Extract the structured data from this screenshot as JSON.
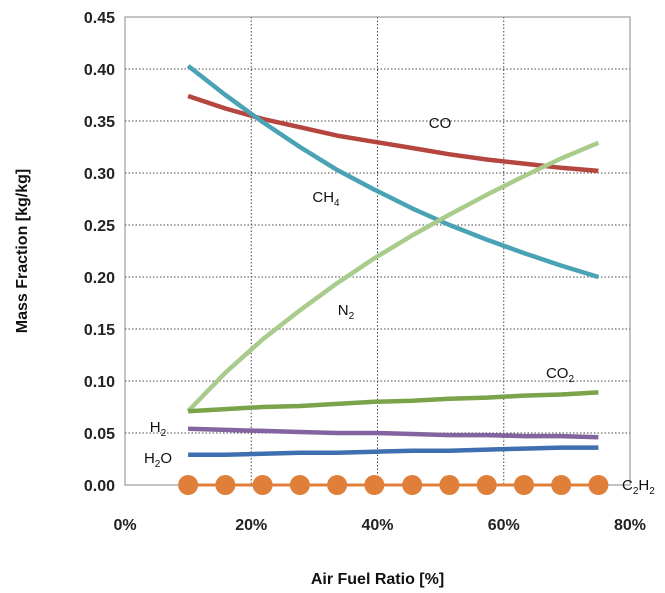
{
  "chart_data": {
    "type": "line",
    "title": "",
    "xlabel": "Air Fuel Ratio  [%]",
    "ylabel": "Mass Fraction  [kg/kg]",
    "xlim": [
      0,
      80
    ],
    "ylim": [
      0,
      0.45
    ],
    "x_ticks": [
      "0%",
      "20%",
      "40%",
      "60%",
      "80%"
    ],
    "y_ticks": [
      "0.00",
      "0.05",
      "0.10",
      "0.15",
      "0.20",
      "0.25",
      "0.30",
      "0.35",
      "0.40",
      "0.45"
    ],
    "grid": true,
    "legend": "none",
    "x": [
      10,
      15.9,
      21.8,
      27.7,
      33.6,
      39.5,
      45.5,
      51.4,
      57.3,
      63.2,
      69.1,
      75
    ],
    "series": [
      {
        "label_main": "CO",
        "label_sub": "",
        "color": "#b5463f",
        "marker": false,
        "values": [
          0.374,
          0.362,
          0.352,
          0.344,
          0.336,
          0.33,
          0.324,
          0.318,
          0.313,
          0.309,
          0.305,
          0.302
        ]
      },
      {
        "label_main": "CH",
        "label_sub": "4",
        "color": "#4aa3b4",
        "marker": false,
        "values": [
          0.403,
          0.375,
          0.349,
          0.325,
          0.303,
          0.284,
          0.266,
          0.25,
          0.236,
          0.223,
          0.211,
          0.2
        ]
      },
      {
        "label_main": "N",
        "label_sub": "2",
        "color": "#a9cc8c",
        "marker": false,
        "values": [
          0.071,
          0.108,
          0.14,
          0.168,
          0.194,
          0.218,
          0.24,
          0.26,
          0.279,
          0.297,
          0.314,
          0.329
        ]
      },
      {
        "label_main": "CO",
        "label_sub": "2",
        "color": "#7aa34a",
        "marker": false,
        "values": [
          0.071,
          0.073,
          0.075,
          0.076,
          0.078,
          0.08,
          0.081,
          0.083,
          0.084,
          0.086,
          0.087,
          0.089
        ]
      },
      {
        "label_main": "H",
        "label_sub": "2",
        "color": "#8364a0",
        "marker": false,
        "values": [
          0.054,
          0.053,
          0.052,
          0.051,
          0.05,
          0.05,
          0.049,
          0.048,
          0.048,
          0.047,
          0.047,
          0.046
        ]
      },
      {
        "label_main": "H",
        "label_sub": "2",
        "label_tail": "O",
        "color": "#3f6fb0",
        "marker": false,
        "values": [
          0.029,
          0.029,
          0.03,
          0.031,
          0.031,
          0.032,
          0.033,
          0.033,
          0.034,
          0.035,
          0.036,
          0.036
        ]
      },
      {
        "label_main": "C",
        "label_sub": "2",
        "label_tail": "H",
        "label_sub2": "2",
        "color": "#e07f3a",
        "marker": true,
        "values": [
          0,
          0,
          0,
          0,
          0,
          0,
          0,
          0,
          0,
          0,
          0,
          0
        ]
      }
    ]
  }
}
